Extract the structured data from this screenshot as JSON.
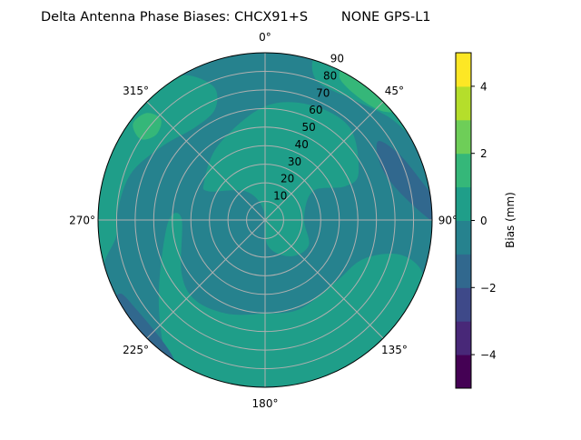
{
  "chart_data": {
    "type": "polar-contour",
    "title": "Delta Antenna Phase Biases: CHCX91+S        NONE GPS-L1",
    "angular_ticks": [
      "0°",
      "45°",
      "90°",
      "135°",
      "180°",
      "225°",
      "270°",
      "315°"
    ],
    "radial_ticks": [
      "10",
      "20",
      "30",
      "40",
      "50",
      "60",
      "70",
      "80",
      "90"
    ],
    "radial_range": [
      0,
      90
    ],
    "grid": true,
    "colorbar": {
      "label": "Bias (mm)",
      "levels": [
        -5,
        -4,
        -3,
        -2,
        -1,
        0,
        1,
        2,
        3,
        4,
        5
      ],
      "colors": [
        "#440154",
        "#482878",
        "#3e4989",
        "#31688e",
        "#26828e",
        "#1f9e89",
        "#35b779",
        "#6ece58",
        "#b5de2b",
        "#fde725"
      ],
      "ticks": [
        "−4",
        "−2",
        "0",
        "2",
        "4"
      ],
      "tick_values": [
        -4,
        -2,
        0,
        2,
        4
      ]
    },
    "background_level": [
      -1,
      0
    ],
    "regions": [
      {
        "level": [
          0,
          1
        ],
        "points": [
          [
            302,
            38.7
          ],
          [
            328,
            47.5
          ],
          [
            359,
            60.7
          ],
          [
            20.7,
            66.4
          ],
          [
            42.4,
            67.5
          ],
          [
            63.2,
            56.4
          ],
          [
            67.2,
            46.7
          ],
          [
            58.9,
            30.3
          ],
          [
            87,
            21
          ],
          [
            120,
            27.2
          ],
          [
            145,
            23.9
          ],
          [
            174,
            13.8
          ],
          [
            350,
            6
          ],
          [
            325,
            19
          ],
          [
            297,
            34
          ]
        ]
      },
      {
        "level": [
          0,
          1
        ],
        "points": [
          [
            268.4,
            52.4
          ],
          [
            271,
            45
          ],
          [
            237.8,
            53.2
          ],
          [
            221.2,
            57.2
          ],
          [
            202.2,
            54.4
          ],
          [
            181,
            50.4
          ],
          [
            158.8,
            51.4
          ],
          [
            131,
            50.6
          ],
          [
            111.7,
            56.9
          ],
          [
            104.4,
            74.8
          ],
          [
            108.5,
            89.3
          ],
          [
            118.8,
            93
          ],
          [
            133,
            93
          ],
          [
            146.5,
            93
          ],
          [
            162,
            91.5
          ],
          [
            180,
            89.5
          ],
          [
            196,
            90.7
          ],
          [
            211.5,
            90.7
          ],
          [
            219,
            86.9
          ],
          [
            236.3,
            68.8
          ]
        ]
      },
      {
        "level": [
          0,
          1
        ],
        "points": [
          [
            317,
            93
          ],
          [
            330,
            89.9
          ],
          [
            338.8,
            77.1
          ],
          [
            335.7,
            65.5
          ],
          [
            323,
            62.5
          ],
          [
            306.2,
            67.9
          ],
          [
            289.5,
            76.3
          ],
          [
            274.2,
            79.5
          ],
          [
            263.7,
            80.7
          ],
          [
            254.8,
            89.7
          ],
          [
            245,
            93
          ],
          [
            265,
            93
          ],
          [
            285,
            93
          ],
          [
            300,
            93
          ]
        ]
      },
      {
        "level": [
          0,
          1
        ],
        "points": [
          [
            16.7,
            90.4
          ],
          [
            20.9,
            79.6
          ],
          [
            36.6,
            80.4
          ],
          [
            51,
            87
          ],
          [
            64,
            93
          ],
          [
            50,
            93
          ],
          [
            35,
            93
          ],
          [
            22,
            93
          ]
        ]
      },
      {
        "level": [
          1,
          2
        ],
        "points": [
          [
            28,
            86
          ],
          [
            38,
            83
          ],
          [
            47,
            86
          ],
          [
            50,
            93
          ],
          [
            38,
            93
          ],
          [
            28,
            93
          ]
        ]
      },
      {
        "level": [
          1,
          2
        ],
        "points": [
          [
            303,
            80
          ],
          [
            308,
            74.5
          ],
          [
            314,
            78
          ],
          [
            312,
            86
          ],
          [
            306,
            88
          ]
        ]
      },
      {
        "level": [
          -2,
          -1
        ],
        "points": [
          [
            55.2,
            74.5
          ],
          [
            64,
            80.5
          ],
          [
            76.4,
            87
          ],
          [
            84.7,
            93
          ],
          [
            91,
            93
          ],
          [
            86,
            82.3
          ],
          [
            73,
            70.6
          ],
          [
            61.8,
            69.4
          ]
        ]
      },
      {
        "level": [
          -2,
          -1
        ],
        "points": [
          [
            243,
            87.3
          ],
          [
            235.4,
            84.4
          ],
          [
            222.4,
            84.8
          ],
          [
            214.2,
            88.7
          ],
          [
            212,
            93
          ],
          [
            225,
            93
          ],
          [
            240,
            93
          ]
        ]
      }
    ]
  }
}
